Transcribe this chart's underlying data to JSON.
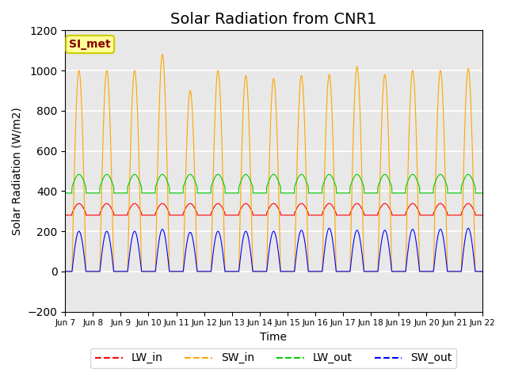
{
  "title": "Solar Radiation from CNR1",
  "xlabel": "Time",
  "ylabel": "Solar Radiation (W/m2)",
  "ylim": [
    -200,
    1200
  ],
  "x_tick_labels": [
    "Jun 7",
    "Jun 8",
    "Jun 9",
    "Jun 10",
    "Jun 11",
    "Jun 12",
    "Jun 13",
    "Jun 14",
    "Jun 15",
    "Jun 16",
    "Jun 17",
    "Jun 18",
    "Jun 19",
    "Jun 20",
    "Jun 21",
    "Jun 22"
  ],
  "legend_labels": [
    "LW_in",
    "SW_in",
    "LW_out",
    "SW_out"
  ],
  "line_colors": [
    "#ff0000",
    "#ffa500",
    "#00cc00",
    "#0000ff"
  ],
  "annotation_text": "SI_met",
  "annotation_bg": "#ffff99",
  "annotation_border": "#cccc00",
  "annotation_text_color": "#880000",
  "background_color": "#ffffff",
  "plot_bg_color": "#e8e8e8",
  "grid_color": "#ffffff",
  "title_fontsize": 14,
  "axis_fontsize": 10,
  "legend_fontsize": 10,
  "num_days": 15,
  "points_per_day": 144,
  "LW_in_base": 290,
  "LW_in_amp": 60,
  "SW_in_peaks": [
    1000,
    1000,
    1000,
    1080,
    900,
    1000,
    975,
    960,
    975,
    980,
    1020,
    980,
    1000,
    1000,
    1010
  ],
  "LW_out_base": 420,
  "LW_out_amp": 70,
  "SW_out_peaks": [
    200,
    200,
    200,
    210,
    195,
    200,
    200,
    200,
    205,
    215,
    205,
    205,
    210,
    210,
    215
  ]
}
